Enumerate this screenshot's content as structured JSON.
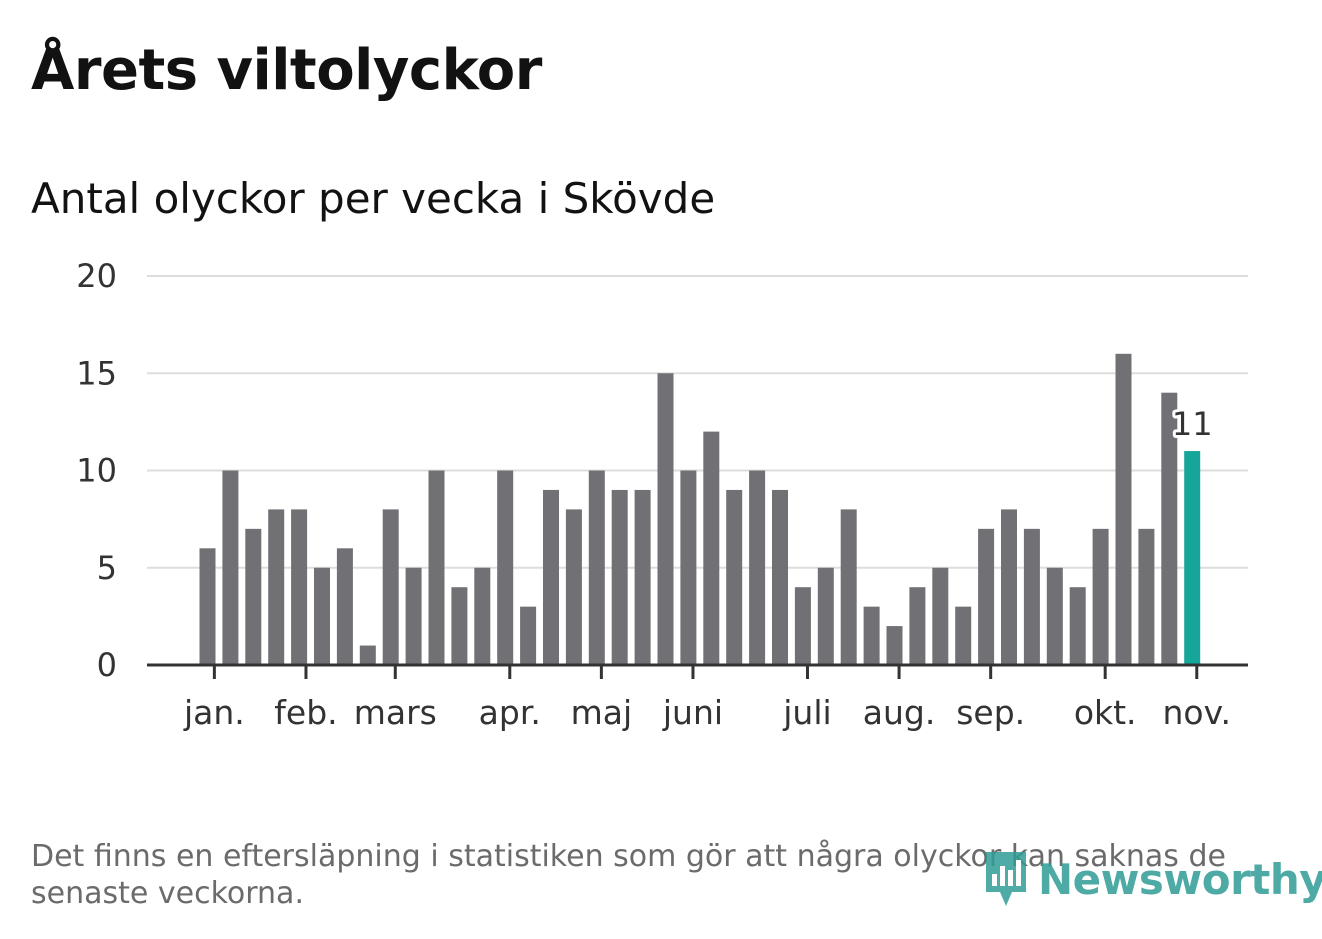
{
  "title": "Årets viltolyckor",
  "subtitle": "Antal olyckor per vecka i Skövde",
  "footnote": "Det finns en eftersläpning i statistiken som gör att några olyckor kan saknas de senaste veckorna.",
  "logo": {
    "name": "Newsworthy",
    "icon": "bar-chart-speech-bubble-icon"
  },
  "colors": {
    "bar": "#717075",
    "highlight": "#16a59b",
    "grid": "#dddddd",
    "axis": "#333333",
    "brand": "#2f9c96"
  },
  "chart_data": {
    "type": "bar",
    "title": "Antal olyckor per vecka i Skövde",
    "xlabel": "",
    "ylabel": "",
    "ylim": [
      0,
      20
    ],
    "yticks": [
      0,
      5,
      10,
      15,
      20
    ],
    "grid": true,
    "values": [
      6,
      10,
      7,
      8,
      8,
      5,
      6,
      1,
      8,
      5,
      10,
      4,
      5,
      10,
      3,
      9,
      8,
      10,
      9,
      9,
      15,
      10,
      12,
      9,
      10,
      9,
      4,
      5,
      8,
      3,
      2,
      4,
      5,
      3,
      7,
      8,
      7,
      5,
      4,
      7,
      16,
      7,
      14,
      11
    ],
    "highlight_index": 43,
    "highlight_label": "11",
    "month_ticks": [
      {
        "label": "jan.",
        "week": 0.3
      },
      {
        "label": "feb.",
        "week": 4.3
      },
      {
        "label": "mars",
        "week": 8.2
      },
      {
        "label": "apr.",
        "week": 13.2
      },
      {
        "label": "maj",
        "week": 17.2
      },
      {
        "label": "juni",
        "week": 21.2
      },
      {
        "label": "juli",
        "week": 26.2
      },
      {
        "label": "aug.",
        "week": 30.2
      },
      {
        "label": "sep.",
        "week": 34.2
      },
      {
        "label": "okt.",
        "week": 39.2
      },
      {
        "label": "nov.",
        "week": 43.2
      }
    ]
  }
}
